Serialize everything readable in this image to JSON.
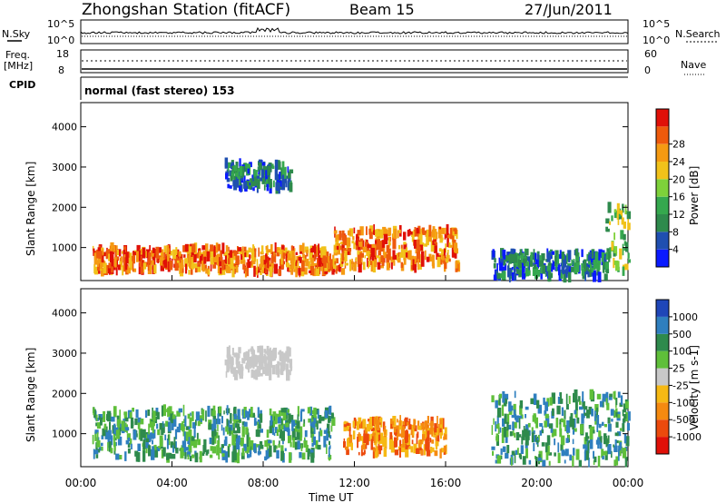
{
  "header": {
    "station": "Zhongshan Station (fitACF)",
    "beam": "Beam 15",
    "date": "27/Jun/2011"
  },
  "status_panels": {
    "nsky_label": "N.Sky",
    "nsky_ticks": [
      "10^5",
      "10^0"
    ],
    "nsearch_label": "N.Search",
    "nsearch_ticks": [
      "10^5",
      "10^0"
    ],
    "freq_label": "Freq.",
    "freq_unit": "[MHz]",
    "freq_ticks": [
      "18",
      "8"
    ],
    "nave_label": "Nave",
    "nave_ticks": [
      "60",
      "0"
    ],
    "cpid_label": "CPID",
    "cpid_text": "normal (fast stereo) 153"
  },
  "chart_data": [
    {
      "type": "heatmap",
      "panel": "power",
      "ylabel": "Slant Range [km]",
      "ylim": [
        180,
        4600
      ],
      "yticks": [
        1000,
        2000,
        3000,
        4000
      ],
      "x_ticks": [
        "00:00",
        "04:00",
        "08:00",
        "12:00",
        "16:00",
        "20:00",
        "00:00"
      ],
      "colorbar_label": "Power [dB]",
      "colorbar_ticks": [
        "4",
        "8",
        "12",
        "16",
        "20",
        "24",
        "28"
      ],
      "colorbar_colors": [
        "#0a1aff",
        "#1f4fb0",
        "#2e8a4c",
        "#35a84e",
        "#7ed13a",
        "#f1c21a",
        "#f59a12",
        "#ee5a0c",
        "#e01008"
      ],
      "regions": [
        {
          "t": [
            0.5,
            11.5
          ],
          "r": [
            380,
            1000
          ],
          "level": "high"
        },
        {
          "t": [
            11.0,
            16.5
          ],
          "r": [
            500,
            1450
          ],
          "level": "high"
        },
        {
          "t": [
            6.3,
            9.2
          ],
          "r": [
            2450,
            3100
          ],
          "level": "low"
        },
        {
          "t": [
            18.0,
            23.0
          ],
          "r": [
            250,
            900
          ],
          "level": "low"
        },
        {
          "t": [
            23.0,
            24.0
          ],
          "r": [
            400,
            2000
          ],
          "level": "mid"
        }
      ]
    },
    {
      "type": "heatmap",
      "panel": "velocity",
      "ylabel": "Slant Range [km]",
      "xlabel": "Time UT",
      "ylim": [
        180,
        4600
      ],
      "yticks": [
        1000,
        2000,
        3000,
        4000
      ],
      "x_ticks": [
        "00:00",
        "04:00",
        "08:00",
        "12:00",
        "16:00",
        "20:00",
        "00:00"
      ],
      "colorbar_label": "Velocity [m s-1]",
      "colorbar_ticks": [
        "1000",
        "500",
        "100",
        "25",
        "-25",
        "-100",
        "-500",
        "-1000"
      ],
      "colorbar_colors": [
        "#1f46b8",
        "#2f7fbf",
        "#2e8a4c",
        "#5fbf3a",
        "#c8c8c8",
        "#f6b914",
        "#f58a10",
        "#ec4a0d",
        "#e01008"
      ],
      "regions": [
        {
          "t": [
            0.5,
            11.0
          ],
          "r": [
            380,
            1600
          ],
          "level": "low"
        },
        {
          "t": [
            11.5,
            16.0
          ],
          "r": [
            500,
            1350
          ],
          "level": "mid"
        },
        {
          "t": [
            6.3,
            9.2
          ],
          "r": [
            2450,
            3100
          ],
          "level": "zero"
        },
        {
          "t": [
            18.0,
            24.0
          ],
          "r": [
            250,
            2000
          ],
          "level": "low"
        }
      ]
    }
  ]
}
